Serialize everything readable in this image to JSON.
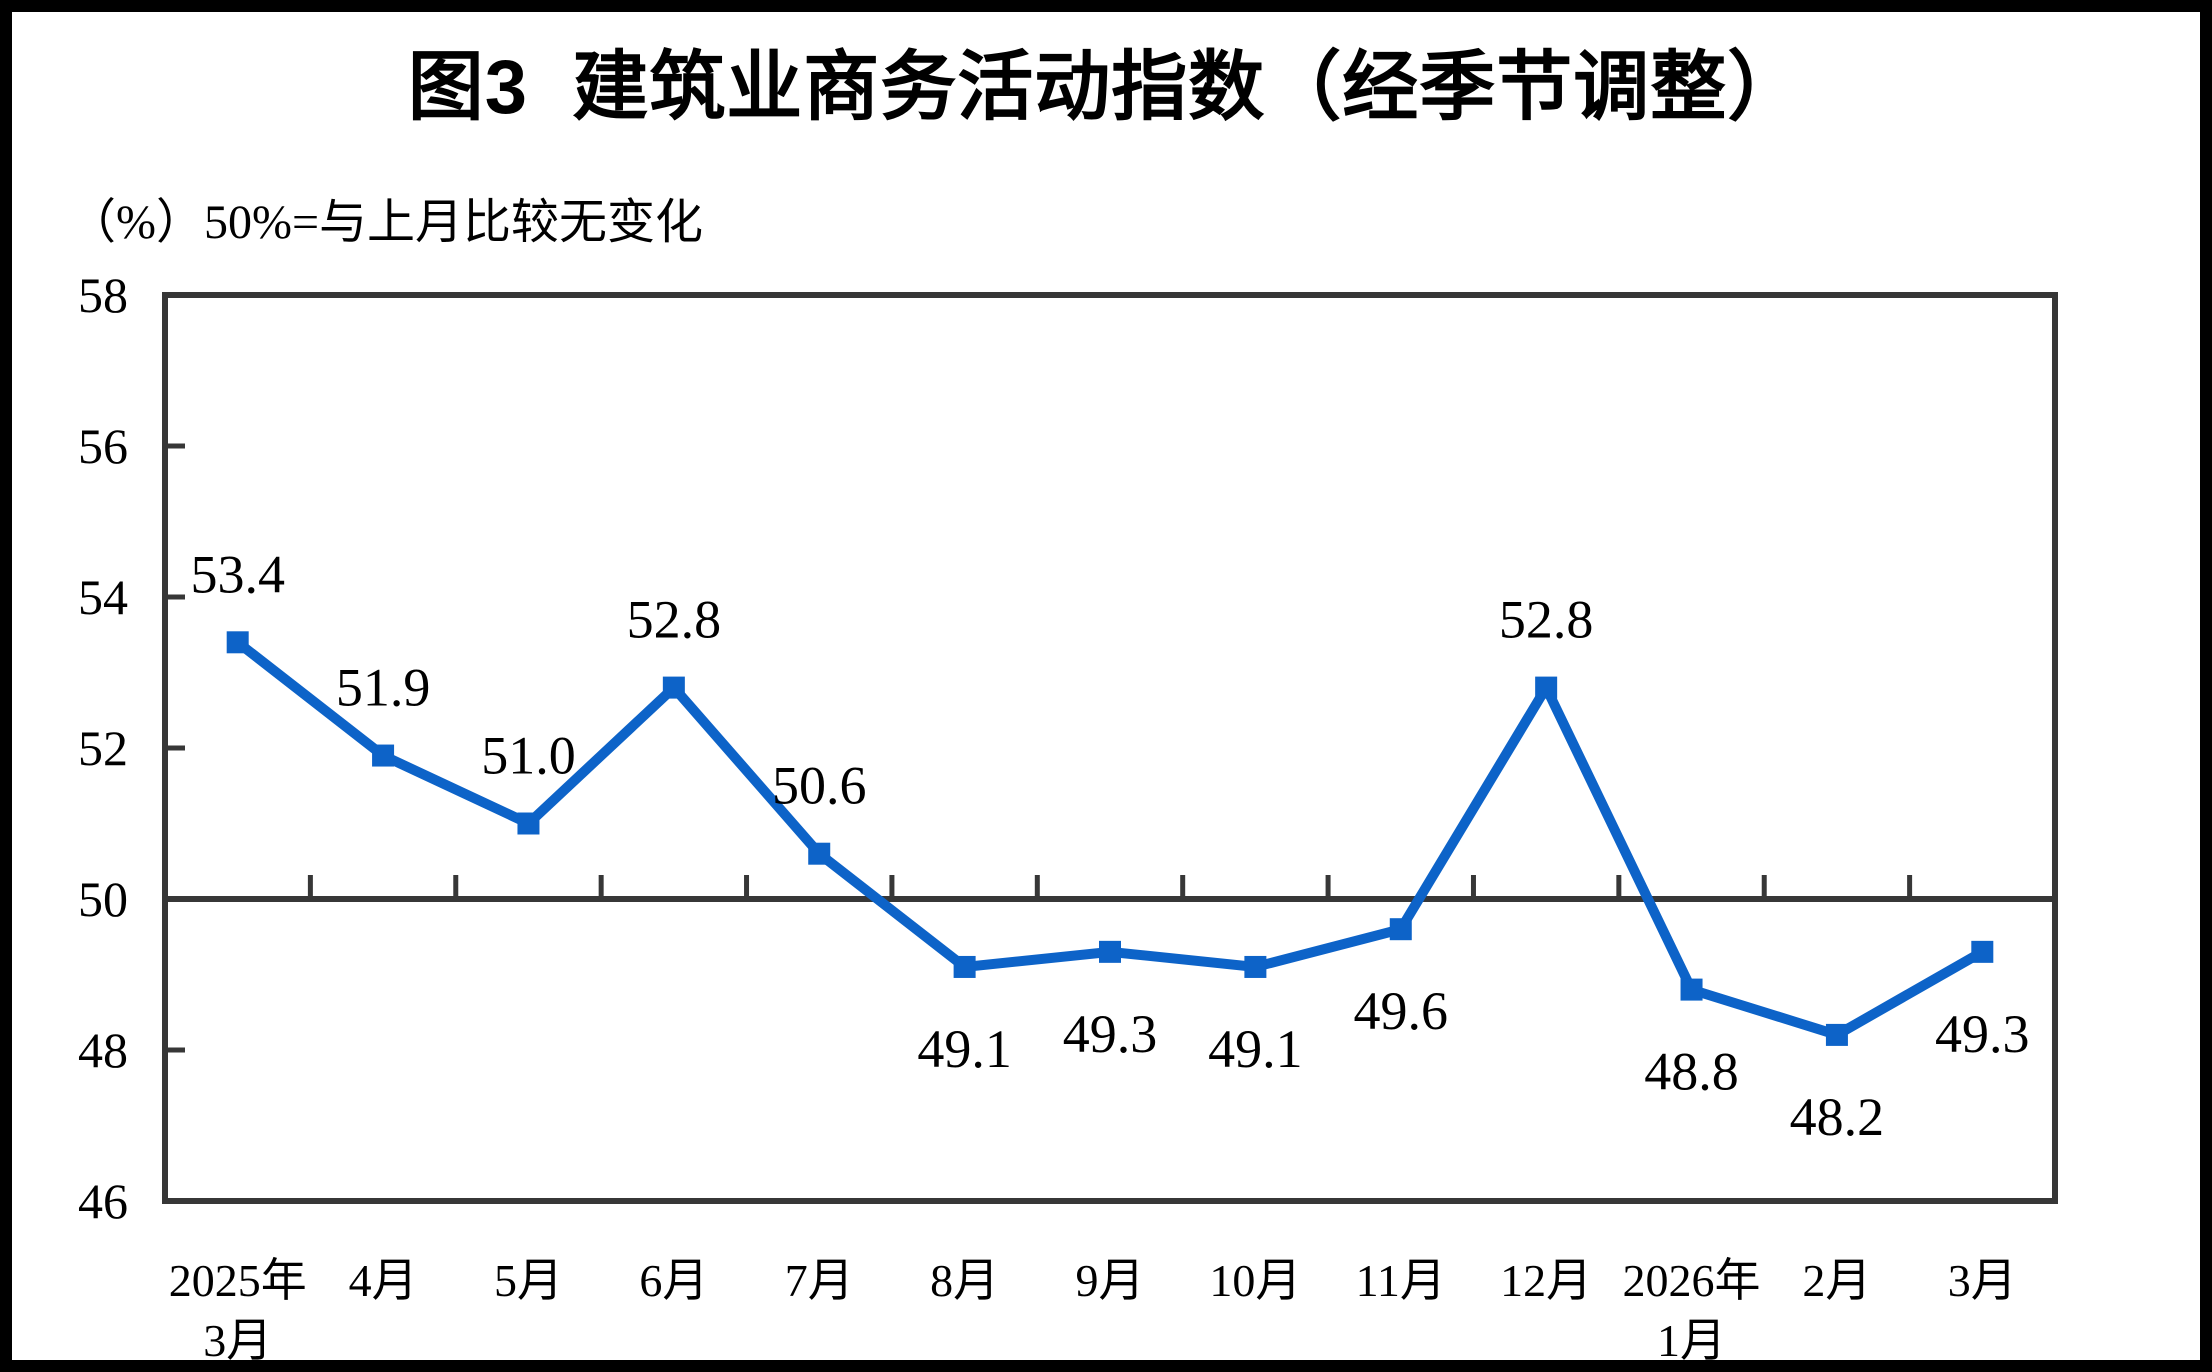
{
  "page": {
    "title": "图3  建筑业商务活动指数（经季节调整）",
    "unit_note": "（%）50%=与上月比较无变化"
  },
  "chart_data": {
    "type": "line",
    "title": "图3  建筑业商务活动指数（经季节调整）",
    "subtitle": "（%）50%=与上月比较无变化",
    "series_name": "建筑业商务活动指数（经季节调整）",
    "categories": [
      [
        "2025年",
        "3月"
      ],
      [
        "4月"
      ],
      [
        "5月"
      ],
      [
        "6月"
      ],
      [
        "7月"
      ],
      [
        "8月"
      ],
      [
        "9月"
      ],
      [
        "10月"
      ],
      [
        "11月"
      ],
      [
        "12月"
      ],
      [
        "2026年",
        "1月"
      ],
      [
        "2月"
      ],
      [
        "3月"
      ]
    ],
    "values": [
      53.4,
      51.9,
      51.0,
      52.8,
      50.6,
      49.1,
      49.3,
      49.1,
      49.6,
      52.8,
      48.8,
      48.2,
      49.3
    ],
    "point_labels": [
      "53.4",
      "51.9",
      "51.0",
      "52.8",
      "50.6",
      "49.1",
      "49.3",
      "49.1",
      "49.6",
      "52.8",
      "48.8",
      "48.2",
      "49.3"
    ],
    "label_positions": [
      "above",
      "above",
      "above",
      "above",
      "above",
      "below",
      "below",
      "below",
      "below",
      "above",
      "below",
      "below",
      "below"
    ],
    "ylim": [
      46,
      58
    ],
    "y_ticks": [
      58,
      56,
      54,
      52,
      50,
      48,
      46
    ],
    "baseline_value": 50,
    "grid": false,
    "legend_position": "none",
    "marker": "square",
    "colors": {
      "line": "#0D63C8",
      "axis": "#373737",
      "text": "#000000",
      "background": "#FFFFFF",
      "outer_frame": "#000000"
    }
  }
}
